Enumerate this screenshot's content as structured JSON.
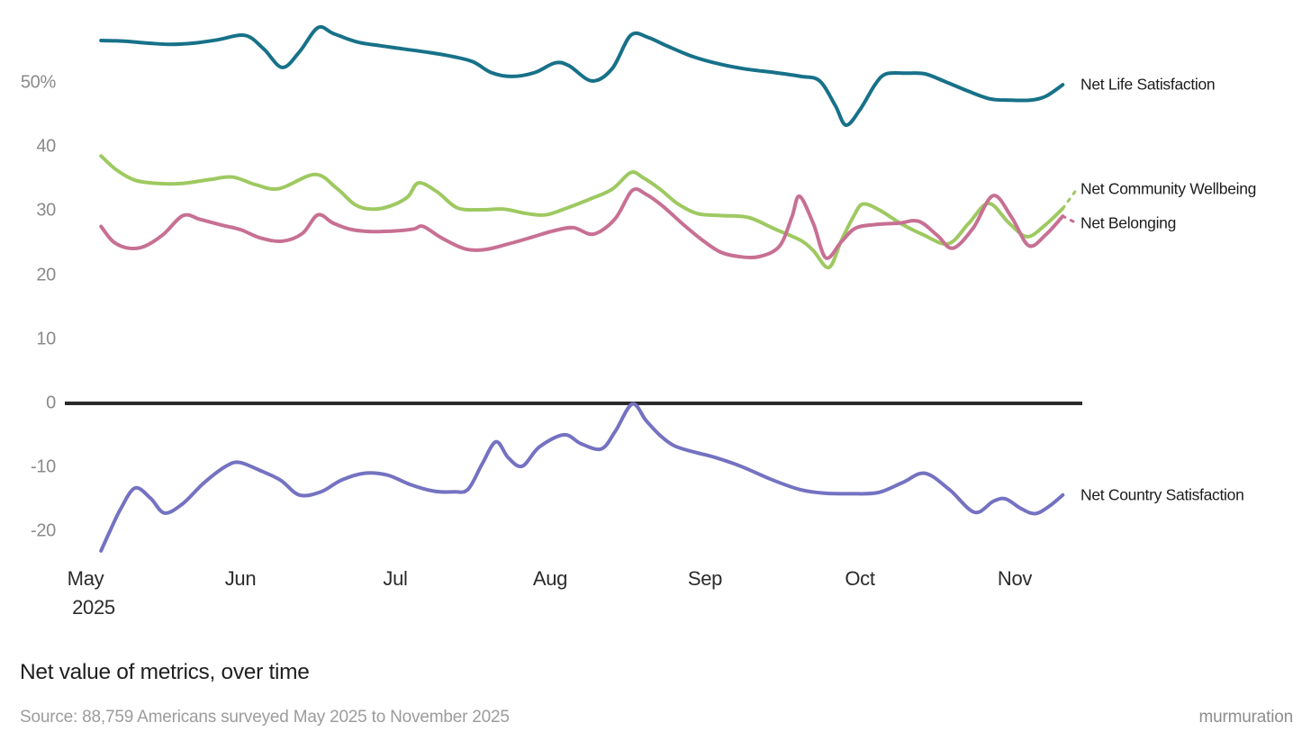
{
  "chart_data": {
    "type": "line",
    "title": "Net value of metrics, over time",
    "source": "Source: 88,759 Americans surveyed May 2025 to November 2025",
    "branding": "murmuration",
    "grid": false,
    "legend_position": "right-of-line-ends",
    "x_axis": {
      "unit": "months since May 1, 2025",
      "ticks": [
        {
          "label": "May",
          "sub": "2025",
          "t": 0
        },
        {
          "label": "Jun",
          "t": 1
        },
        {
          "label": "Jul",
          "t": 2
        },
        {
          "label": "Aug",
          "t": 3
        },
        {
          "label": "Sep",
          "t": 4
        },
        {
          "label": "Oct",
          "t": 5
        },
        {
          "label": "Nov",
          "t": 6
        }
      ]
    },
    "y_axis": {
      "unit": "net % points",
      "range": [
        -25,
        60
      ],
      "ticks": [
        {
          "label": "50%",
          "v": 50
        },
        {
          "label": "40",
          "v": 40
        },
        {
          "label": "30",
          "v": 30
        },
        {
          "label": "20",
          "v": 20
        },
        {
          "label": "10",
          "v": 10
        },
        {
          "label": "0",
          "v": 0
        },
        {
          "label": "-10",
          "v": -10
        },
        {
          "label": "-20",
          "v": -20
        }
      ]
    },
    "zero_line": {
      "v": 0,
      "color": "#2b2b2b"
    },
    "series": [
      {
        "name": "Net Life Satisfaction",
        "color": "#177189",
        "points": [
          [
            0.1,
            56.6
          ],
          [
            0.25,
            56.5
          ],
          [
            0.4,
            56.2
          ],
          [
            0.55,
            56.0
          ],
          [
            0.7,
            56.2
          ],
          [
            0.85,
            56.7
          ],
          [
            1.03,
            57.4
          ],
          [
            1.15,
            55.3
          ],
          [
            1.27,
            52.4
          ],
          [
            1.38,
            54.8
          ],
          [
            1.5,
            58.6
          ],
          [
            1.6,
            57.7
          ],
          [
            1.75,
            56.4
          ],
          [
            1.9,
            55.8
          ],
          [
            2.05,
            55.3
          ],
          [
            2.2,
            54.8
          ],
          [
            2.35,
            54.2
          ],
          [
            2.5,
            53.3
          ],
          [
            2.62,
            51.6
          ],
          [
            2.75,
            51.0
          ],
          [
            2.9,
            51.6
          ],
          [
            3.03,
            53.1
          ],
          [
            3.12,
            52.7
          ],
          [
            3.27,
            50.3
          ],
          [
            3.4,
            52.2
          ],
          [
            3.52,
            57.4
          ],
          [
            3.63,
            57.1
          ],
          [
            3.76,
            55.7
          ],
          [
            3.92,
            54.1
          ],
          [
            4.08,
            53.0
          ],
          [
            4.25,
            52.2
          ],
          [
            4.45,
            51.6
          ],
          [
            4.62,
            51.0
          ],
          [
            4.74,
            50.3
          ],
          [
            4.84,
            46.5
          ],
          [
            4.91,
            43.4
          ],
          [
            5.0,
            45.8
          ],
          [
            5.1,
            49.8
          ],
          [
            5.17,
            51.4
          ],
          [
            5.3,
            51.5
          ],
          [
            5.42,
            51.4
          ],
          [
            5.55,
            50.2
          ],
          [
            5.7,
            48.7
          ],
          [
            5.84,
            47.5
          ],
          [
            5.97,
            47.3
          ],
          [
            6.1,
            47.3
          ],
          [
            6.2,
            47.9
          ],
          [
            6.31,
            49.7
          ]
        ]
      },
      {
        "name": "Net Community Wellbeing",
        "color": "#9ec961",
        "points": [
          [
            0.1,
            38.6
          ],
          [
            0.2,
            36.4
          ],
          [
            0.32,
            34.8
          ],
          [
            0.47,
            34.3
          ],
          [
            0.62,
            34.3
          ],
          [
            0.8,
            34.9
          ],
          [
            0.95,
            35.3
          ],
          [
            1.1,
            34.1
          ],
          [
            1.25,
            33.5
          ],
          [
            1.48,
            35.7
          ],
          [
            1.62,
            33.6
          ],
          [
            1.74,
            31.0
          ],
          [
            1.85,
            30.3
          ],
          [
            1.97,
            30.8
          ],
          [
            2.08,
            32.2
          ],
          [
            2.15,
            34.4
          ],
          [
            2.27,
            33.0
          ],
          [
            2.4,
            30.5
          ],
          [
            2.55,
            30.2
          ],
          [
            2.7,
            30.3
          ],
          [
            2.85,
            29.6
          ],
          [
            2.97,
            29.4
          ],
          [
            3.1,
            30.4
          ],
          [
            3.25,
            31.8
          ],
          [
            3.4,
            33.4
          ],
          [
            3.52,
            36.0
          ],
          [
            3.6,
            35.2
          ],
          [
            3.71,
            33.4
          ],
          [
            3.82,
            31.2
          ],
          [
            3.95,
            29.6
          ],
          [
            4.1,
            29.3
          ],
          [
            4.28,
            29.0
          ],
          [
            4.45,
            27.2
          ],
          [
            4.62,
            25.4
          ],
          [
            4.7,
            23.8
          ],
          [
            4.8,
            21.2
          ],
          [
            4.88,
            25.4
          ],
          [
            4.96,
            29.2
          ],
          [
            5.02,
            31.1
          ],
          [
            5.13,
            30.1
          ],
          [
            5.26,
            28.1
          ],
          [
            5.4,
            26.4
          ],
          [
            5.57,
            24.9
          ],
          [
            5.7,
            28.0
          ],
          [
            5.83,
            31.2
          ],
          [
            5.96,
            28.2
          ],
          [
            6.08,
            26.0
          ],
          [
            6.2,
            27.9
          ],
          [
            6.31,
            30.4
          ]
        ],
        "dash_tail": [
          [
            6.31,
            30.4
          ],
          [
            6.4,
            33.4
          ]
        ]
      },
      {
        "name": "Net Belonging",
        "color": "#c77093",
        "points": [
          [
            0.1,
            27.6
          ],
          [
            0.18,
            25.2
          ],
          [
            0.28,
            24.2
          ],
          [
            0.38,
            24.5
          ],
          [
            0.5,
            26.3
          ],
          [
            0.63,
            29.3
          ],
          [
            0.74,
            28.7
          ],
          [
            0.88,
            27.8
          ],
          [
            1.0,
            27.1
          ],
          [
            1.13,
            25.8
          ],
          [
            1.27,
            25.3
          ],
          [
            1.4,
            26.5
          ],
          [
            1.5,
            29.4
          ],
          [
            1.6,
            28.1
          ],
          [
            1.72,
            27.1
          ],
          [
            1.85,
            26.8
          ],
          [
            2.0,
            26.9
          ],
          [
            2.12,
            27.2
          ],
          [
            2.18,
            27.6
          ],
          [
            2.3,
            25.8
          ],
          [
            2.45,
            24.1
          ],
          [
            2.58,
            24.0
          ],
          [
            2.72,
            24.8
          ],
          [
            2.88,
            25.9
          ],
          [
            3.02,
            26.9
          ],
          [
            3.15,
            27.4
          ],
          [
            3.28,
            26.4
          ],
          [
            3.42,
            28.8
          ],
          [
            3.53,
            33.2
          ],
          [
            3.62,
            32.6
          ],
          [
            3.73,
            30.7
          ],
          [
            3.86,
            27.9
          ],
          [
            3.98,
            25.5
          ],
          [
            4.1,
            23.6
          ],
          [
            4.22,
            22.9
          ],
          [
            4.35,
            22.9
          ],
          [
            4.48,
            24.5
          ],
          [
            4.56,
            29.0
          ],
          [
            4.61,
            32.3
          ],
          [
            4.7,
            28.0
          ],
          [
            4.78,
            22.7
          ],
          [
            4.88,
            25.2
          ],
          [
            4.97,
            27.3
          ],
          [
            5.1,
            27.9
          ],
          [
            5.25,
            28.1
          ],
          [
            5.38,
            28.4
          ],
          [
            5.5,
            26.2
          ],
          [
            5.6,
            24.2
          ],
          [
            5.73,
            27.3
          ],
          [
            5.86,
            32.4
          ],
          [
            5.98,
            29.0
          ],
          [
            6.09,
            24.6
          ],
          [
            6.2,
            26.3
          ],
          [
            6.31,
            29.2
          ]
        ],
        "dash_tail": [
          [
            6.31,
            29.2
          ],
          [
            6.4,
            28.1
          ]
        ]
      },
      {
        "name": "Net Country Satisfaction",
        "color": "#7472c1",
        "points": [
          [
            0.1,
            -23.0
          ],
          [
            0.16,
            -19.8
          ],
          [
            0.23,
            -16.3
          ],
          [
            0.32,
            -13.2
          ],
          [
            0.42,
            -14.8
          ],
          [
            0.51,
            -17.1
          ],
          [
            0.63,
            -15.6
          ],
          [
            0.76,
            -12.5
          ],
          [
            0.9,
            -9.9
          ],
          [
            0.99,
            -9.2
          ],
          [
            1.12,
            -10.4
          ],
          [
            1.26,
            -12.0
          ],
          [
            1.38,
            -14.3
          ],
          [
            1.52,
            -13.8
          ],
          [
            1.65,
            -12.0
          ],
          [
            1.8,
            -10.9
          ],
          [
            1.95,
            -11.2
          ],
          [
            2.1,
            -12.7
          ],
          [
            2.25,
            -13.7
          ],
          [
            2.38,
            -13.8
          ],
          [
            2.47,
            -13.4
          ],
          [
            2.56,
            -9.5
          ],
          [
            2.65,
            -6.0
          ],
          [
            2.73,
            -8.5
          ],
          [
            2.82,
            -9.8
          ],
          [
            2.93,
            -6.8
          ],
          [
            3.09,
            -4.9
          ],
          [
            3.2,
            -6.3
          ],
          [
            3.33,
            -7.1
          ],
          [
            3.42,
            -4.4
          ],
          [
            3.53,
            -0.1
          ],
          [
            3.62,
            -2.7
          ],
          [
            3.71,
            -5.0
          ],
          [
            3.8,
            -6.6
          ],
          [
            3.93,
            -7.6
          ],
          [
            4.06,
            -8.4
          ],
          [
            4.23,
            -9.8
          ],
          [
            4.43,
            -11.9
          ],
          [
            4.62,
            -13.5
          ],
          [
            4.77,
            -14.0
          ],
          [
            4.95,
            -14.1
          ],
          [
            5.12,
            -13.9
          ],
          [
            5.28,
            -12.3
          ],
          [
            5.42,
            -10.9
          ],
          [
            5.58,
            -13.5
          ],
          [
            5.74,
            -17.0
          ],
          [
            5.86,
            -15.3
          ],
          [
            5.94,
            -14.9
          ],
          [
            6.04,
            -16.4
          ],
          [
            6.13,
            -17.2
          ],
          [
            6.22,
            -16.1
          ],
          [
            6.31,
            -14.3
          ]
        ]
      }
    ]
  }
}
